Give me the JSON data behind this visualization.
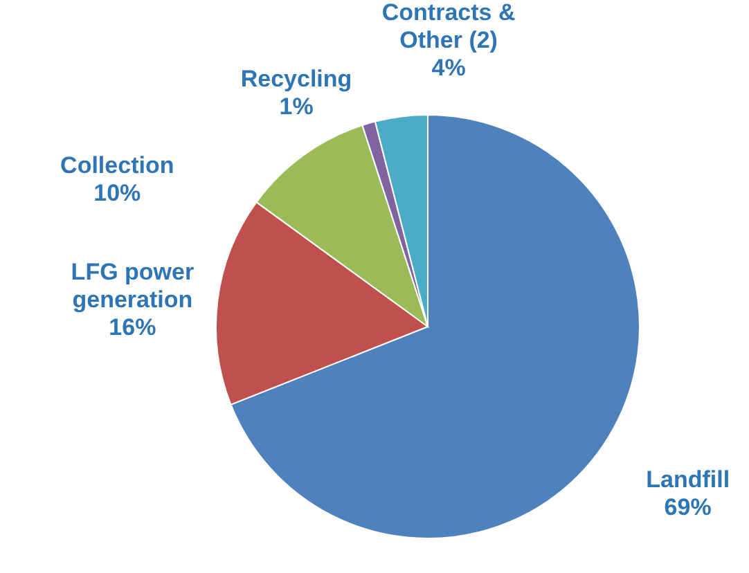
{
  "chart_data": {
    "type": "pie",
    "categories": [
      "Landfill",
      "LFG power generation",
      "Collection",
      "Recycling",
      "Contracts & Other (2)"
    ],
    "values": [
      69,
      16,
      10,
      1,
      4
    ],
    "value_labels": [
      "69%",
      "16%",
      "10%",
      "1%",
      "4%"
    ],
    "colors": [
      "#4f81bd",
      "#c0504d",
      "#9bbb59",
      "#8064a2",
      "#4bacc6"
    ]
  }
}
